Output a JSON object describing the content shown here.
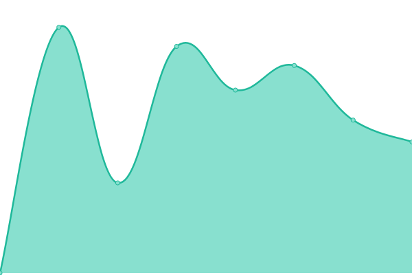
{
  "chart_data": {
    "type": "area",
    "categories": [
      null,
      null,
      null,
      null,
      null,
      null,
      null,
      null
    ],
    "series": [
      {
        "values": [
          0,
          90,
          33,
          83,
          67,
          76,
          56,
          48
        ],
        "color": "#1fb89a",
        "fill": "#88e0cf"
      }
    ],
    "ylim": [
      0,
      100
    ],
    "smooth": true,
    "markers": true
  }
}
